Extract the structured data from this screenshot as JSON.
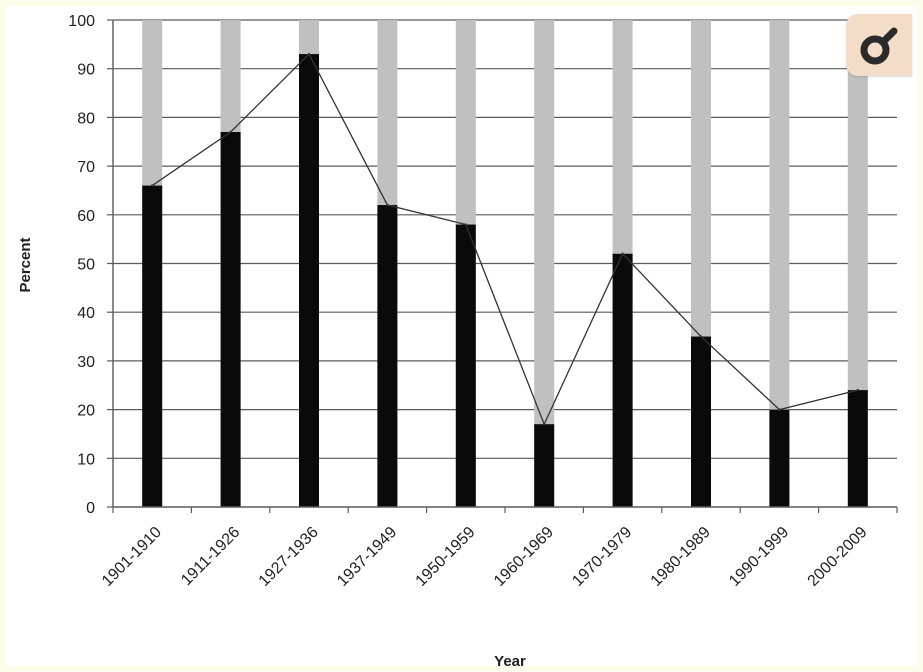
{
  "icons": {
    "zoom": "magnifier-icon"
  },
  "colors": {
    "page_background": "#fdfbe9",
    "plot_background": "#ffffff",
    "bar_total": "#c0c0c0",
    "bar_value": "#0a0a0a",
    "line": "#333333",
    "gridline": "#5a5a5a",
    "zoom_button": "#f3dcc8",
    "zoom_icon": "#2a2a2a"
  },
  "chart_data": {
    "type": "bar",
    "xlabel": "Year",
    "ylabel": "Percent",
    "ylim": [
      0,
      100
    ],
    "yticks": [
      0,
      10,
      20,
      30,
      40,
      50,
      60,
      70,
      80,
      90,
      100
    ],
    "grid": true,
    "legend": "none",
    "categories": [
      "1901-1910",
      "1911-1926",
      "1927-1936",
      "1937-1949",
      "1950-1959",
      "1960-1969",
      "1970-1979",
      "1980-1989",
      "1990-1999",
      "2000-2009"
    ],
    "series": [
      {
        "type": "bar",
        "values": [
          100,
          100,
          100,
          100,
          100,
          100,
          100,
          100,
          100,
          100
        ]
      },
      {
        "type": "bar",
        "values": [
          66,
          77,
          93,
          62,
          58,
          17,
          52,
          35,
          20,
          24
        ]
      },
      {
        "type": "line",
        "values": [
          66,
          77,
          93,
          62,
          58,
          17,
          52,
          35,
          20,
          24
        ]
      }
    ]
  }
}
